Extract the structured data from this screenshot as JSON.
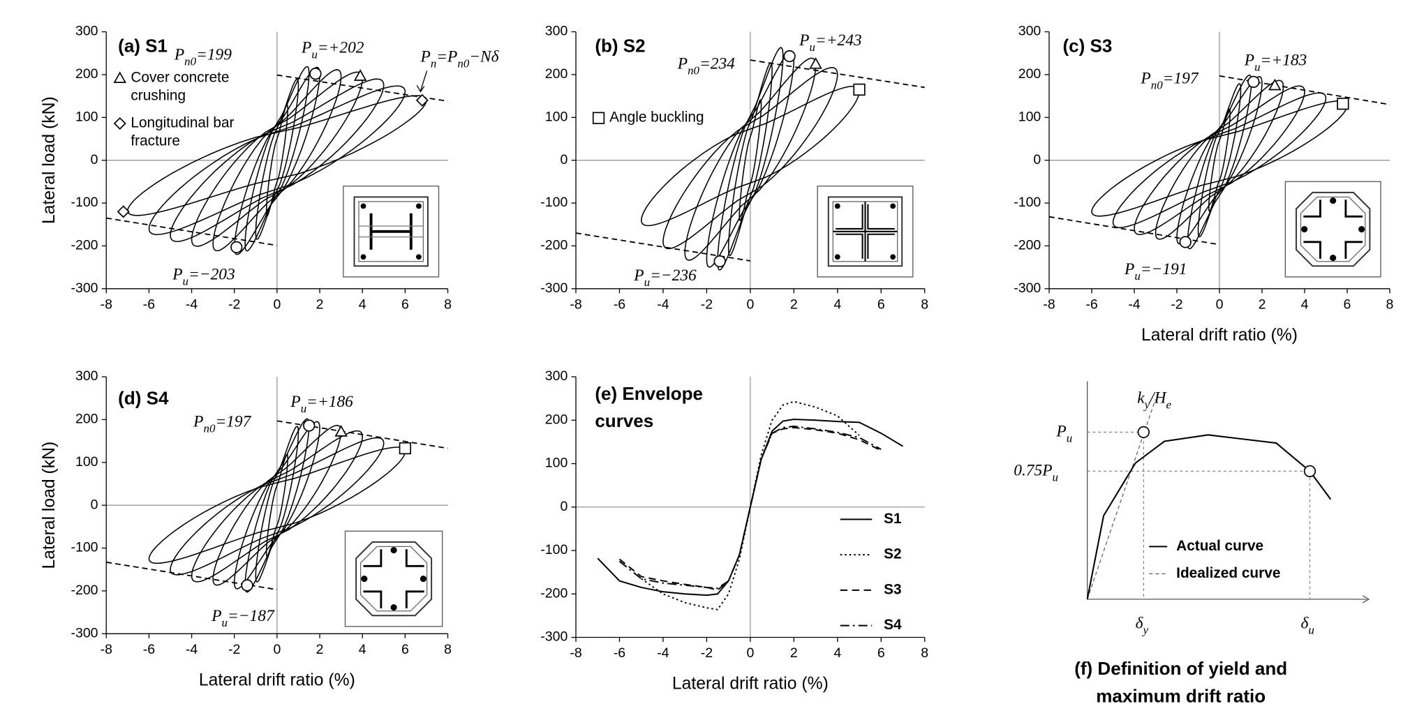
{
  "chart_data": [
    {
      "type": "hysteresis",
      "title": "(a) S1",
      "ylabel": "Lateral load (kN)",
      "xlim": [
        -8,
        8
      ],
      "ylim": [
        -300,
        300
      ],
      "xticks": [
        -8,
        -6,
        -4,
        -2,
        0,
        2,
        4,
        6,
        8
      ],
      "yticks": [
        -300,
        -200,
        -100,
        0,
        100,
        200,
        300
      ],
      "cycles": {
        "drift": [
          0.5,
          1,
          1.5,
          2,
          3,
          4,
          5,
          6,
          7
        ],
        "positive": [
          120,
          175,
          202,
          200,
          195,
          190,
          175,
          160,
          140
        ],
        "negative": [
          -120,
          -170,
          -195,
          -203,
          -195,
          -185,
          -175,
          -160,
          -118
        ]
      },
      "pn_lines": [
        {
          "x": [
            0,
            8
          ],
          "y": [
            199,
            138
          ]
        },
        {
          "x": [
            -8,
            0
          ],
          "y": [
            -135,
            -199
          ]
        }
      ],
      "markers": [
        {
          "shape": "circle",
          "x": 1.8,
          "y": 202
        },
        {
          "shape": "circle",
          "x": -1.9,
          "y": -203
        },
        {
          "shape": "triangle",
          "x": 3.9,
          "y": 197
        },
        {
          "shape": "diamond",
          "x": -7.2,
          "y": -120
        },
        {
          "shape": "diamond",
          "x": 6.8,
          "y": 140
        }
      ],
      "marker_legend": [
        {
          "shape": "triangle",
          "label": [
            "Cover concrete",
            "crushing"
          ]
        },
        {
          "shape": "diamond",
          "label": [
            "Longitudinal bar",
            "fracture"
          ]
        }
      ],
      "annotations": [
        [
          {
            "t": "P"
          },
          {
            "sub": "n0"
          },
          {
            "t": "=199"
          }
        ],
        [
          {
            "t": "P"
          },
          {
            "sub": "u"
          },
          {
            "t": "=+202"
          }
        ],
        [
          {
            "t": "P"
          },
          {
            "sub": "u"
          },
          {
            "t": "=−203"
          }
        ],
        [
          {
            "t": "P"
          },
          {
            "sub": "n"
          },
          {
            "t": "=P"
          },
          {
            "sub": "n0"
          },
          {
            "t": "−Nδ"
          }
        ]
      ]
    },
    {
      "type": "hysteresis",
      "title": "(b) S2",
      "xlim": [
        -8,
        8
      ],
      "ylim": [
        -300,
        300
      ],
      "xticks": [
        -8,
        -6,
        -4,
        -2,
        0,
        2,
        4,
        6,
        8
      ],
      "yticks": [
        -300,
        -200,
        -100,
        0,
        100,
        200,
        300
      ],
      "cycles": {
        "drift": [
          0.5,
          1,
          1.5,
          2,
          3,
          4,
          5
        ],
        "positive": [
          130,
          210,
          243,
          235,
          220,
          200,
          160
        ],
        "negative": [
          -130,
          -205,
          -236,
          -230,
          -215,
          -190,
          -140
        ]
      },
      "pn_lines": [
        {
          "x": [
            0,
            8
          ],
          "y": [
            234,
            170
          ]
        },
        {
          "x": [
            -8,
            0
          ],
          "y": [
            -170,
            -235
          ]
        }
      ],
      "markers": [
        {
          "shape": "circle",
          "x": 1.8,
          "y": 243
        },
        {
          "shape": "circle",
          "x": -1.4,
          "y": -236
        },
        {
          "shape": "triangle",
          "x": 3,
          "y": 225
        },
        {
          "shape": "square",
          "x": 5,
          "y": 165
        }
      ],
      "marker_legend": [
        {
          "shape": "square",
          "label": [
            "Angle buckling"
          ]
        }
      ],
      "annotations": [
        [
          {
            "t": "P"
          },
          {
            "sub": "n0"
          },
          {
            "t": "=234"
          }
        ],
        [
          {
            "t": "P"
          },
          {
            "sub": "u"
          },
          {
            "t": "=+243"
          }
        ],
        [
          {
            "t": "P"
          },
          {
            "sub": "u"
          },
          {
            "t": "=−236"
          }
        ]
      ]
    },
    {
      "type": "hysteresis",
      "title": "(c) S3",
      "xlabel": "Lateral drift ratio (%)",
      "xlim": [
        -8,
        8
      ],
      "ylim": [
        -300,
        300
      ],
      "xticks": [
        -8,
        -6,
        -4,
        -2,
        0,
        2,
        4,
        6,
        8
      ],
      "yticks": [
        -300,
        -200,
        -100,
        0,
        100,
        200,
        300
      ],
      "cycles": {
        "drift": [
          0.5,
          1,
          1.5,
          2,
          3,
          4,
          5,
          6
        ],
        "positive": [
          110,
          165,
          183,
          180,
          172,
          160,
          145,
          128
        ],
        "negative": [
          -110,
          -165,
          -191,
          -180,
          -170,
          -160,
          -145,
          -120
        ]
      },
      "pn_lines": [
        {
          "x": [
            0,
            8
          ],
          "y": [
            197,
            130
          ]
        },
        {
          "x": [
            -8,
            0
          ],
          "y": [
            -132,
            -197
          ]
        }
      ],
      "markers": [
        {
          "shape": "circle",
          "x": 1.6,
          "y": 183
        },
        {
          "shape": "circle",
          "x": -1.6,
          "y": -191
        },
        {
          "shape": "triangle",
          "x": 2.6,
          "y": 175
        },
        {
          "shape": "square",
          "x": 5.8,
          "y": 132
        }
      ],
      "annotations": [
        [
          {
            "t": "P"
          },
          {
            "sub": "n0"
          },
          {
            "t": "=197"
          }
        ],
        [
          {
            "t": "P"
          },
          {
            "sub": "u"
          },
          {
            "t": "=+183"
          }
        ],
        [
          {
            "t": "P"
          },
          {
            "sub": "u"
          },
          {
            "t": "=−191"
          }
        ]
      ]
    },
    {
      "type": "hysteresis",
      "title": "(d) S4",
      "ylabel": "Lateral load (kN)",
      "xlabel": "Lateral drift ratio (%)",
      "xlim": [
        -8,
        8
      ],
      "ylim": [
        -300,
        300
      ],
      "xticks": [
        -8,
        -6,
        -4,
        -2,
        0,
        2,
        4,
        6,
        8
      ],
      "yticks": [
        -300,
        -200,
        -100,
        0,
        100,
        200,
        300
      ],
      "cycles": {
        "drift": [
          0.5,
          1,
          1.5,
          2,
          3,
          4,
          5,
          6
        ],
        "positive": [
          110,
          170,
          186,
          180,
          172,
          160,
          145,
          125
        ],
        "negative": [
          -110,
          -165,
          -187,
          -180,
          -172,
          -165,
          -150,
          -125
        ]
      },
      "pn_lines": [
        {
          "x": [
            0,
            8
          ],
          "y": [
            197,
            133
          ]
        },
        {
          "x": [
            -8,
            0
          ],
          "y": [
            -133,
            -197
          ]
        }
      ],
      "markers": [
        {
          "shape": "circle",
          "x": 1.5,
          "y": 186
        },
        {
          "shape": "circle",
          "x": -1.4,
          "y": -187
        },
        {
          "shape": "triangle",
          "x": 3,
          "y": 172
        },
        {
          "shape": "square",
          "x": 6,
          "y": 133
        }
      ],
      "annotations": [
        [
          {
            "t": "P"
          },
          {
            "sub": "n0"
          },
          {
            "t": "=197"
          }
        ],
        [
          {
            "t": "P"
          },
          {
            "sub": "u"
          },
          {
            "t": "=+186"
          }
        ],
        [
          {
            "t": "P"
          },
          {
            "sub": "u"
          },
          {
            "t": "=−187"
          }
        ]
      ]
    },
    {
      "type": "line",
      "title": [
        "(e) Envelope",
        "curves"
      ],
      "xlabel": "Lateral drift ratio (%)",
      "xlim": [
        -8,
        8
      ],
      "ylim": [
        -300,
        300
      ],
      "xticks": [
        -8,
        -6,
        -4,
        -2,
        0,
        2,
        4,
        6,
        8
      ],
      "yticks": [
        -300,
        -200,
        -100,
        0,
        100,
        200,
        300
      ],
      "series": [
        {
          "name": "S1",
          "color": "#000000",
          "dash": "solid",
          "x": [
            -7,
            -6,
            -5,
            -4,
            -3,
            -2,
            -1.5,
            -1,
            -0.5,
            0,
            0.5,
            1,
            1.5,
            2,
            3,
            4,
            5,
            6,
            7
          ],
          "values": [
            -118,
            -170,
            -185,
            -195,
            -200,
            -203,
            -200,
            -170,
            -110,
            0,
            110,
            175,
            198,
            202,
            200,
            197,
            195,
            170,
            140
          ]
        },
        {
          "name": "S2",
          "color": "#000000",
          "dash": "dotted",
          "x": [
            -5,
            -4,
            -3,
            -2,
            -1.5,
            -1,
            -0.5,
            0,
            0.5,
            1,
            1.5,
            2,
            3,
            4,
            5
          ],
          "values": [
            -165,
            -200,
            -220,
            -232,
            -236,
            -200,
            -120,
            0,
            120,
            200,
            235,
            243,
            230,
            210,
            165
          ]
        },
        {
          "name": "S3",
          "color": "#000000",
          "dash": "dashed",
          "x": [
            -6,
            -5,
            -4,
            -3,
            -2,
            -1.5,
            -1,
            -0.5,
            0,
            0.5,
            1,
            1.5,
            2,
            3,
            4,
            5,
            6
          ],
          "values": [
            -120,
            -160,
            -170,
            -178,
            -185,
            -191,
            -170,
            -110,
            0,
            110,
            170,
            180,
            183,
            178,
            170,
            155,
            130
          ]
        },
        {
          "name": "S4",
          "color": "#000000",
          "dash": "dashdot",
          "x": [
            -6,
            -5,
            -4,
            -3,
            -2,
            -1.5,
            -1,
            -0.5,
            0,
            0.5,
            1,
            1.5,
            2,
            3,
            4,
            5,
            6
          ],
          "values": [
            -125,
            -165,
            -175,
            -180,
            -185,
            -187,
            -170,
            -110,
            0,
            110,
            170,
            183,
            186,
            180,
            172,
            160,
            133
          ]
        }
      ]
    },
    {
      "type": "schematic",
      "labels": [
        [
          {
            "t": "P"
          },
          {
            "sub": "u"
          }
        ],
        [
          {
            "t": "0.75P"
          },
          {
            "sub": "u"
          }
        ],
        [
          {
            "t": "k"
          },
          {
            "sub": "y"
          },
          {
            "t": "/H"
          },
          {
            "sub": "e"
          }
        ],
        [
          {
            "t": "δ"
          },
          {
            "sub": "y"
          }
        ],
        [
          {
            "t": "δ"
          },
          {
            "sub": "u"
          }
        ]
      ],
      "legend": [
        "Actual curve",
        "Idealized curve"
      ],
      "caption": [
        "(f) Definition of yield and",
        "maximum drift ratio"
      ]
    }
  ]
}
